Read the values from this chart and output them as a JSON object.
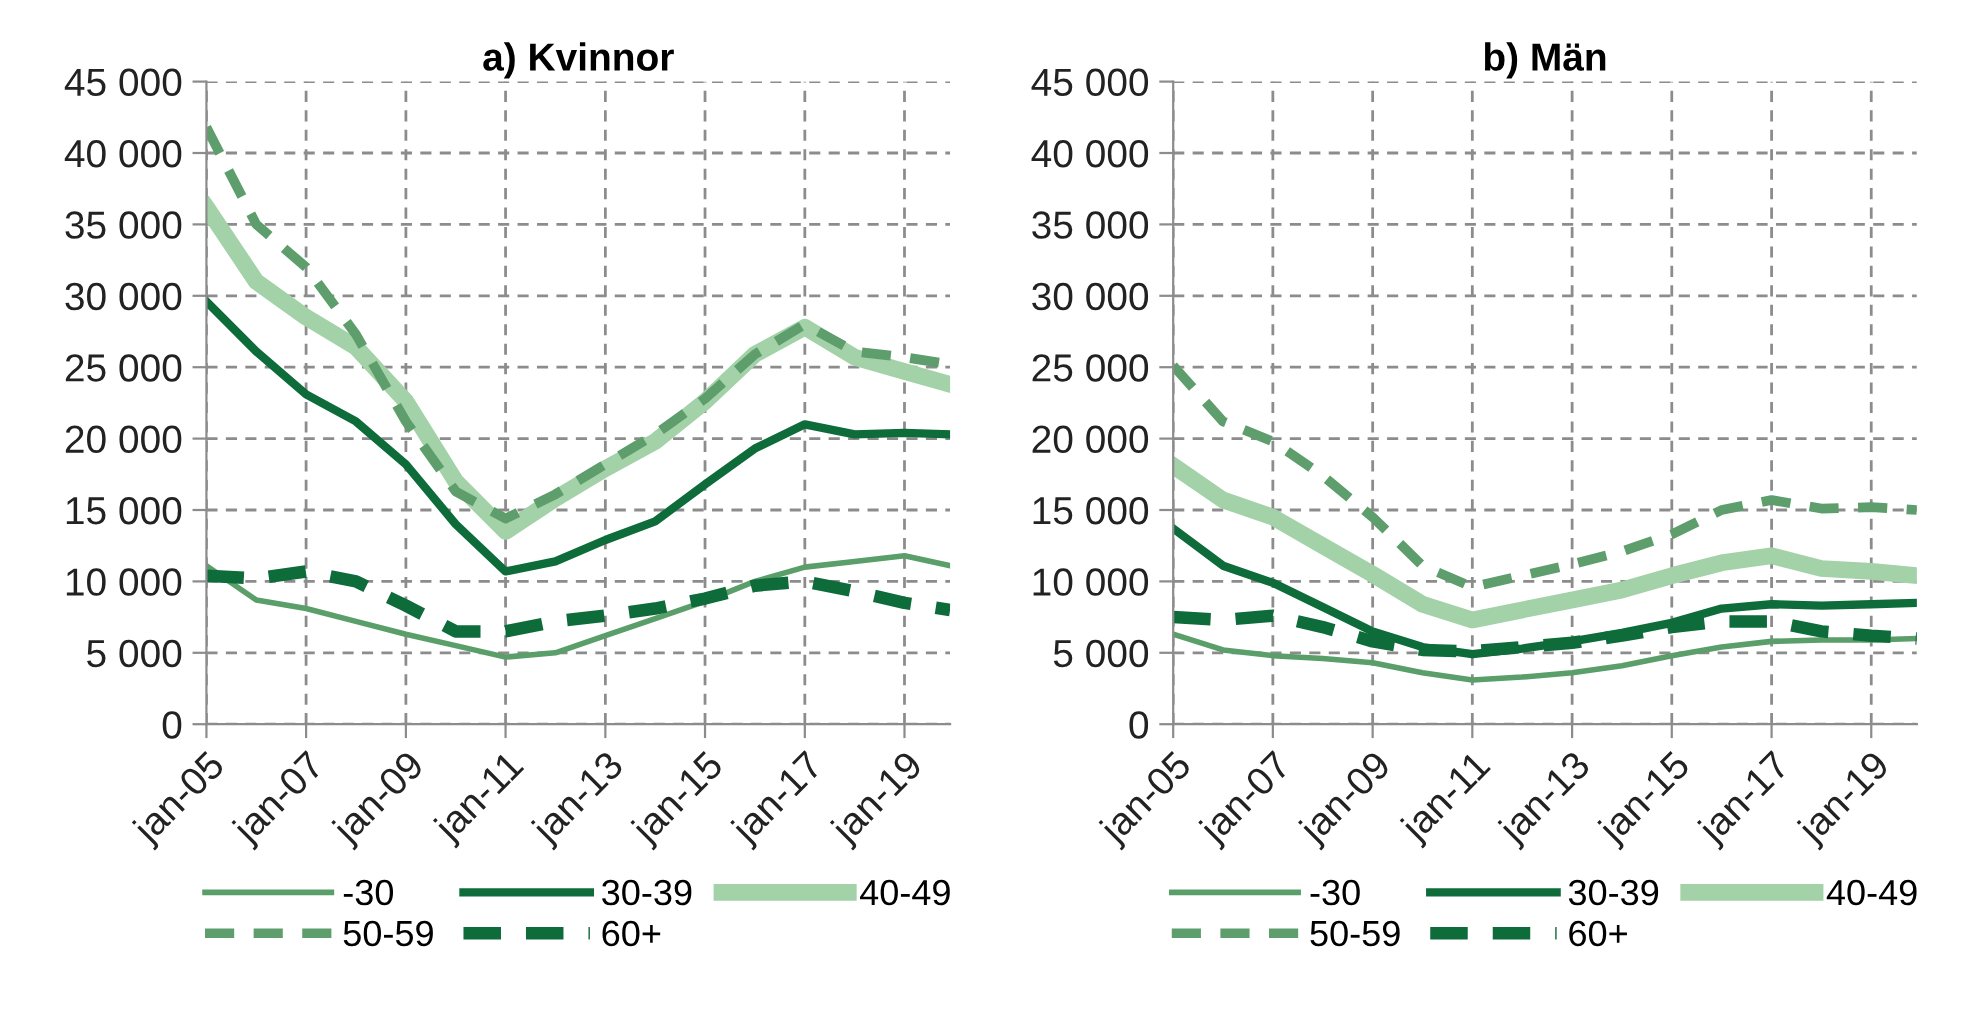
{
  "chart_data": [
    {
      "type": "line",
      "title": "a) Kvinnor",
      "x": [
        "2005-01",
        "2006-01",
        "2007-01",
        "2008-01",
        "2009-01",
        "2010-01",
        "2011-01",
        "2012-01",
        "2013-01",
        "2014-01",
        "2015-01",
        "2016-01",
        "2017-01",
        "2018-01",
        "2019-01",
        "2019-12"
      ],
      "xlim": [
        "2005-01",
        "2019-12"
      ],
      "xticks": [
        {
          "value": "2005-01",
          "label": "jan-05"
        },
        {
          "value": "2007-01",
          "label": "jan-07"
        },
        {
          "value": "2009-01",
          "label": "jan-09"
        },
        {
          "value": "2011-01",
          "label": "jan-11"
        },
        {
          "value": "2013-01",
          "label": "jan-13"
        },
        {
          "value": "2015-01",
          "label": "jan-15"
        },
        {
          "value": "2017-01",
          "label": "jan-17"
        },
        {
          "value": "2019-01",
          "label": "jan-19"
        }
      ],
      "ylim": [
        0,
        45000
      ],
      "yticks": [
        0,
        {
          "value": 5000,
          "label": "5 000"
        },
        {
          "value": 10000,
          "label": "10 000"
        },
        {
          "value": 15000,
          "label": "15 000"
        },
        {
          "value": 20000,
          "label": "20 000"
        },
        {
          "value": 25000,
          "label": "25 000"
        },
        {
          "value": 30000,
          "label": "30 000"
        },
        {
          "value": 35000,
          "label": "35 000"
        },
        {
          "value": 40000,
          "label": "40 000"
        },
        {
          "value": 45000,
          "label": "45 000"
        }
      ],
      "grid": true,
      "legend": "bottom",
      "marker": "none",
      "series": [
        {
          "name": "-30",
          "color": "#5a9e6a",
          "line_style": "solid",
          "values": [
            11100,
            8700,
            8100,
            7200,
            6300,
            5500,
            4700,
            5000,
            6200,
            7400,
            8600,
            10000,
            11000,
            11400,
            11800,
            11100
          ]
        },
        {
          "name": "30-39",
          "color": "#0e6b3a",
          "line_style": "solid",
          "values": [
            29600,
            26100,
            23100,
            21200,
            18200,
            14000,
            10700,
            11400,
            12900,
            14200,
            16800,
            19300,
            21000,
            20300,
            20400,
            20300
          ]
        },
        {
          "name": "40-49",
          "color": "#a3d1a8",
          "line_style": "solid",
          "values": [
            36200,
            31000,
            28500,
            26400,
            22600,
            17000,
            13500,
            15800,
            17900,
            19800,
            22600,
            25900,
            27800,
            25700,
            24700,
            23800
          ]
        },
        {
          "name": "50-59",
          "color": "#5e9e6c",
          "line_style": "dashed",
          "values": [
            41800,
            35000,
            32000,
            27300,
            21200,
            16300,
            14400,
            16100,
            18200,
            20300,
            22800,
            25900,
            28000,
            26100,
            25700,
            25200
          ]
        },
        {
          "name": "60+",
          "color": "#0e6b3a",
          "line_style": "dashed",
          "values": [
            10400,
            10200,
            10700,
            10000,
            8300,
            6500,
            6500,
            7200,
            7600,
            8100,
            8800,
            9700,
            10000,
            9300,
            8500,
            8000
          ]
        }
      ]
    },
    {
      "type": "line",
      "title": "b) Män",
      "x": [
        "2005-01",
        "2006-01",
        "2007-01",
        "2008-01",
        "2009-01",
        "2010-01",
        "2011-01",
        "2012-01",
        "2013-01",
        "2014-01",
        "2015-01",
        "2016-01",
        "2017-01",
        "2018-01",
        "2019-01",
        "2019-12"
      ],
      "xlim": [
        "2005-01",
        "2019-12"
      ],
      "xticks": [
        {
          "value": "2005-01",
          "label": "jan-05"
        },
        {
          "value": "2007-01",
          "label": "jan-07"
        },
        {
          "value": "2009-01",
          "label": "jan-09"
        },
        {
          "value": "2011-01",
          "label": "jan-11"
        },
        {
          "value": "2013-01",
          "label": "jan-13"
        },
        {
          "value": "2015-01",
          "label": "jan-15"
        },
        {
          "value": "2017-01",
          "label": "jan-17"
        },
        {
          "value": "2019-01",
          "label": "jan-19"
        }
      ],
      "ylim": [
        0,
        45000
      ],
      "yticks": [
        0,
        {
          "value": 5000,
          "label": "5 000"
        },
        {
          "value": 10000,
          "label": "10 000"
        },
        {
          "value": 15000,
          "label": "15 000"
        },
        {
          "value": 20000,
          "label": "20 000"
        },
        {
          "value": 25000,
          "label": "25 000"
        },
        {
          "value": 30000,
          "label": "30 000"
        },
        {
          "value": 35000,
          "label": "35 000"
        },
        {
          "value": 40000,
          "label": "40 000"
        },
        {
          "value": 45000,
          "label": "45 000"
        }
      ],
      "grid": true,
      "legend": "bottom",
      "marker": "none",
      "series": [
        {
          "name": "-30",
          "color": "#5a9e6a",
          "line_style": "solid",
          "values": [
            6300,
            5200,
            4800,
            4600,
            4300,
            3600,
            3100,
            3300,
            3600,
            4100,
            4800,
            5400,
            5800,
            5900,
            5900,
            6000
          ]
        },
        {
          "name": "30-39",
          "color": "#0e6b3a",
          "line_style": "solid",
          "values": [
            13700,
            11100,
            9900,
            8200,
            6500,
            5400,
            4900,
            5300,
            5800,
            6400,
            7100,
            8100,
            8400,
            8300,
            8400,
            8500
          ]
        },
        {
          "name": "40-49",
          "color": "#a3d1a8",
          "line_style": "solid",
          "values": [
            18100,
            15700,
            14500,
            12500,
            10500,
            8400,
            7300,
            8000,
            8700,
            9400,
            10400,
            11300,
            11800,
            10900,
            10700,
            10400
          ]
        },
        {
          "name": "50-59",
          "color": "#5e9e6c",
          "line_style": "dashed",
          "values": [
            25100,
            21200,
            19800,
            17400,
            14500,
            11100,
            9600,
            10400,
            11200,
            12100,
            13300,
            15000,
            15700,
            15100,
            15200,
            15000
          ]
        },
        {
          "name": "60+",
          "color": "#0e6b3a",
          "line_style": "dashed",
          "values": [
            7500,
            7300,
            7600,
            6800,
            5800,
            5200,
            5100,
            5400,
            5700,
            6200,
            6800,
            7200,
            7200,
            6500,
            6200,
            6000
          ]
        }
      ]
    }
  ]
}
